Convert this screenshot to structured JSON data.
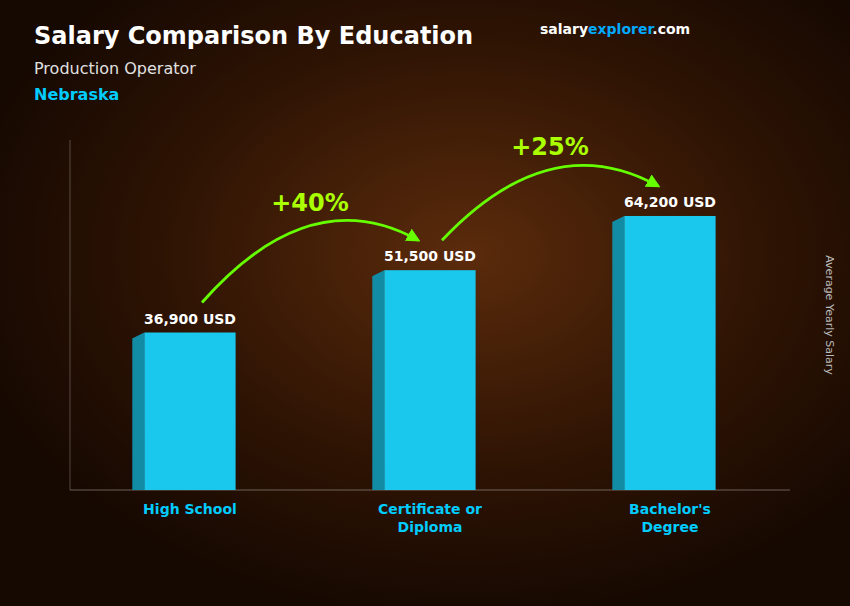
{
  "chart_data": {
    "type": "bar",
    "title": "Salary Comparison By Education",
    "subtitle": [
      "Production Operator",
      "Nebraska"
    ],
    "ylabel": "Average Yearly Salary",
    "categories": [
      "High School",
      "Certificate or\nDiploma",
      "Bachelor's\nDegree"
    ],
    "values": [
      36900,
      51500,
      64200
    ],
    "value_labels": [
      "36,900 USD",
      "51,500 USD",
      "64,200 USD"
    ],
    "data_labels": true,
    "annotations": [
      "+40%",
      "+25%"
    ],
    "source": [
      "salary",
      "explorer",
      ".com"
    ],
    "color": "#1ac8ed",
    "ylim": [
      0,
      82000
    ],
    "tick_labels": "x",
    "grid": false
  }
}
